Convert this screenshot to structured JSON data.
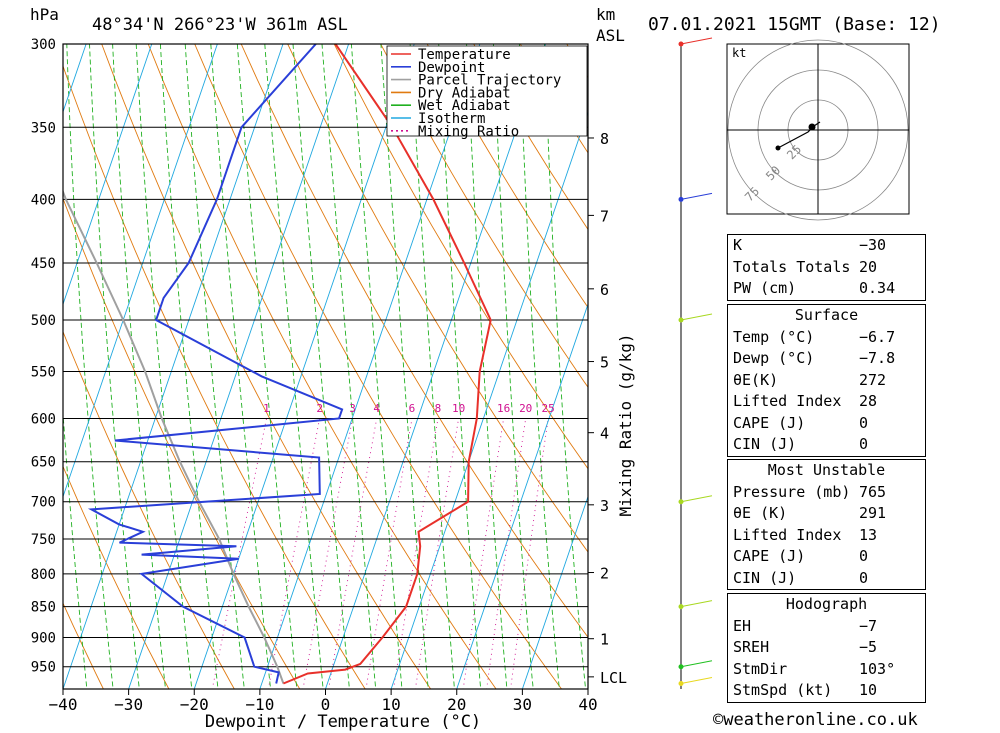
{
  "header": {
    "hpa_label": "hPa",
    "location": "48°34'N 266°23'W 361m ASL",
    "km_label": "km",
    "asl_label": "ASL",
    "datetime": "07.01.2021 15GMT (Base: 12)"
  },
  "legend": [
    "Temperature",
    "Dewpoint",
    "Parcel Trajectory",
    "Dry Adiabat",
    "Wet Adiabat",
    "Isotherm",
    "Mixing Ratio"
  ],
  "colors": {
    "temperature": "#e8302a",
    "dewpoint": "#2a3fd8",
    "parcel": "#a0a0a0",
    "dry_adiabat": "#e07a10",
    "wet_adiabat": "#20b020",
    "isotherm": "#20a8e0",
    "mixing_ratio": "#d01090"
  },
  "chart_data": {
    "type": "skew-t",
    "xlabel": "Dewpoint / Temperature (°C)",
    "ylabel_right": "Mixing Ratio (g/kg)",
    "x_ticks": [
      -40,
      -30,
      -20,
      -10,
      0,
      10,
      20,
      30,
      40
    ],
    "pressure_levels": [
      300,
      350,
      400,
      450,
      500,
      550,
      600,
      650,
      700,
      750,
      800,
      850,
      900,
      950
    ],
    "km_ticks": [
      {
        "label": "8",
        "p": 357
      },
      {
        "label": "7",
        "p": 412
      },
      {
        "label": "6",
        "p": 472
      },
      {
        "label": "5",
        "p": 540
      },
      {
        "label": "4",
        "p": 616
      },
      {
        "label": "3",
        "p": 704
      },
      {
        "label": "2",
        "p": 798
      },
      {
        "label": "1",
        "p": 902
      },
      {
        "label": "LCL",
        "p": 968
      }
    ],
    "mixing_ratio_labels": [
      "1",
      "2",
      "3",
      "4",
      "6",
      "8",
      "10",
      "16",
      "20",
      "25"
    ],
    "temperature": [
      [
        980,
        -6.7
      ],
      [
        962,
        -3.5
      ],
      [
        955,
        2
      ],
      [
        945,
        4
      ],
      [
        900,
        6
      ],
      [
        850,
        8
      ],
      [
        800,
        8
      ],
      [
        760,
        7
      ],
      [
        740,
        6
      ],
      [
        700,
        12
      ],
      [
        650,
        10
      ],
      [
        600,
        9
      ],
      [
        550,
        7
      ],
      [
        500,
        6
      ],
      [
        450,
        -1
      ],
      [
        400,
        -9
      ],
      [
        350,
        -19
      ],
      [
        300,
        -32
      ]
    ],
    "dewpoint": [
      [
        980,
        -7.8
      ],
      [
        960,
        -8
      ],
      [
        950,
        -12
      ],
      [
        900,
        -15
      ],
      [
        850,
        -26
      ],
      [
        800,
        -34
      ],
      [
        778,
        -20
      ],
      [
        772,
        -35
      ],
      [
        760,
        -21
      ],
      [
        755,
        -39
      ],
      [
        740,
        -36
      ],
      [
        730,
        -40
      ],
      [
        710,
        -45
      ],
      [
        690,
        -11
      ],
      [
        645,
        -13
      ],
      [
        625,
        -45
      ],
      [
        600,
        -12
      ],
      [
        590,
        -12
      ],
      [
        555,
        -26
      ],
      [
        500,
        -45
      ],
      [
        480,
        -45
      ],
      [
        450,
        -43
      ],
      [
        400,
        -42
      ],
      [
        370,
        -42
      ],
      [
        350,
        -42
      ],
      [
        300,
        -35
      ]
    ],
    "parcel": [
      [
        980,
        -6.7
      ],
      [
        950,
        -8.5
      ],
      [
        900,
        -12
      ],
      [
        850,
        -16
      ],
      [
        800,
        -20
      ],
      [
        750,
        -24
      ],
      [
        700,
        -29
      ],
      [
        650,
        -34
      ],
      [
        600,
        -39
      ],
      [
        550,
        -44
      ],
      [
        500,
        -50
      ],
      [
        450,
        -57
      ],
      [
        400,
        -65
      ],
      [
        350,
        -73
      ],
      [
        320,
        -78
      ]
    ]
  },
  "hodograph": {
    "unit": "kt",
    "rings": [
      "25",
      "50",
      "75"
    ]
  },
  "indices": [
    {
      "label": "K",
      "value": "-30"
    },
    {
      "label": "Totals Totals",
      "value": "20"
    },
    {
      "label": "PW (cm)",
      "value": "0.34"
    }
  ],
  "surface": {
    "title": "Surface",
    "rows": [
      {
        "label": "Temp (°C)",
        "value": "-6.7"
      },
      {
        "label": "Dewp (°C)",
        "value": "-7.8"
      },
      {
        "label": "θE(K)",
        "value": "272"
      },
      {
        "label": "Lifted Index",
        "value": "28"
      },
      {
        "label": "CAPE (J)",
        "value": "0"
      },
      {
        "label": "CIN (J)",
        "value": "0"
      }
    ]
  },
  "most_unstable": {
    "title": "Most Unstable",
    "rows": [
      {
        "label": "Pressure (mb)",
        "value": "765"
      },
      {
        "label": "θE (K)",
        "value": "291"
      },
      {
        "label": "Lifted Index",
        "value": "13"
      },
      {
        "label": "CAPE (J)",
        "value": "0"
      },
      {
        "label": "CIN (J)",
        "value": "0"
      }
    ]
  },
  "hodograph_table": {
    "title": "Hodograph",
    "rows": [
      {
        "label": "EH",
        "value": "-7"
      },
      {
        "label": "SREH",
        "value": "-5"
      },
      {
        "label": "StmDir",
        "value": "103°"
      },
      {
        "label": "StmSpd (kt)",
        "value": "10"
      }
    ]
  },
  "credit": "©weatheronline.co.uk"
}
